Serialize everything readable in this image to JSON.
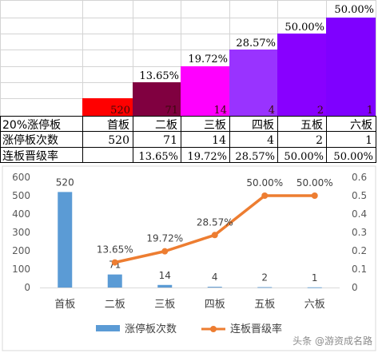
{
  "table": {
    "row_labels": [
      "20%涨停板",
      "涨停板次数",
      "连板晋级率"
    ],
    "stage_labels": [
      "首板",
      "二板",
      "三板",
      "四板",
      "五板",
      "六板"
    ],
    "counts": [
      "520",
      "71",
      "14",
      "4",
      "2",
      "1"
    ],
    "rates": [
      "",
      "13.65%",
      "19.72%",
      "28.57%",
      "50.00%",
      "50.00%"
    ],
    "staircase_labels": [
      "520",
      "71",
      "14",
      "4",
      "2",
      "1"
    ],
    "colors": [
      "#ff0000",
      "#800040",
      "#ff00ff",
      "#9933ff",
      "#8800ff",
      "#7f00ff"
    ]
  },
  "chart_data": {
    "type": "bar",
    "categories": [
      "首板",
      "二板",
      "三板",
      "四板",
      "五板",
      "六板"
    ],
    "series": [
      {
        "name": "涨停板次数",
        "type": "bar",
        "axis": "left",
        "values": [
          520,
          71,
          14,
          4,
          2,
          1
        ],
        "labels": [
          "520",
          "71",
          "14",
          "4",
          "2",
          "1"
        ],
        "color": "#5b9bd5"
      },
      {
        "name": "连板晋级率",
        "type": "line",
        "axis": "right",
        "values": [
          null,
          0.1365,
          0.1972,
          0.2857,
          0.5,
          0.5
        ],
        "labels": [
          "",
          "13.65%",
          "19.72%",
          "28.57%",
          "50.00%",
          "50.00%"
        ],
        "color": "#ed7d31"
      }
    ],
    "ylim_left": [
      0,
      600
    ],
    "yticks_left": [
      "0",
      "100",
      "200",
      "300",
      "400",
      "500",
      "600"
    ],
    "ylim_right": [
      0,
      0.6
    ],
    "yticks_right": [
      "0",
      "0.1",
      "0.2",
      "0.3",
      "0.4",
      "0.5",
      "0.6"
    ],
    "legend": "bottom",
    "grid": false
  },
  "watermark": "头条 @游资成名路"
}
